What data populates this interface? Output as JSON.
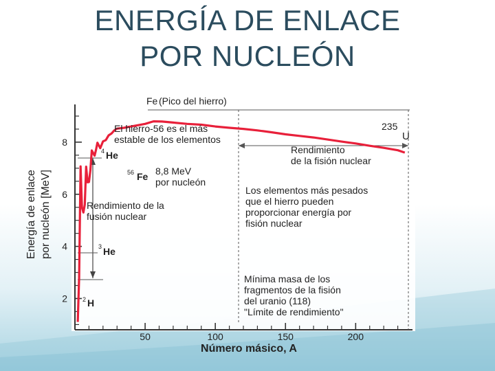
{
  "slide": {
    "title_line1": "ENERGÍA DE ENLACE",
    "title_line2": "POR NUCLEÓN"
  },
  "colors": {
    "curve": "#e8203a",
    "axis": "#333333",
    "title": "#2b4c5e"
  },
  "chart_data": {
    "type": "line",
    "title": "",
    "xlabel": "Número másico, A",
    "ylabel_line1": "Energía de enlace",
    "ylabel_line2": "por nucleón [MeV]",
    "xlim": [
      0,
      240
    ],
    "ylim": [
      0.8,
      9.5
    ],
    "xticks": [
      50,
      100,
      150,
      200
    ],
    "yticks": [
      2,
      4,
      6,
      8
    ],
    "grid": false,
    "series": [
      {
        "values": [
          [
            2,
            1.1
          ],
          [
            3,
            2.8
          ],
          [
            4,
            7.07
          ],
          [
            5,
            5.5
          ],
          [
            6,
            5.3
          ],
          [
            7,
            5.6
          ],
          [
            8,
            7.06
          ],
          [
            9,
            6.46
          ],
          [
            10,
            6.47
          ],
          [
            11,
            6.93
          ],
          [
            12,
            7.68
          ],
          [
            14,
            7.48
          ],
          [
            15,
            7.7
          ],
          [
            16,
            7.98
          ],
          [
            18,
            7.77
          ],
          [
            20,
            8.03
          ],
          [
            22,
            8.08
          ],
          [
            24,
            8.26
          ],
          [
            26,
            8.33
          ],
          [
            28,
            8.45
          ],
          [
            30,
            8.52
          ],
          [
            35,
            8.55
          ],
          [
            40,
            8.6
          ],
          [
            45,
            8.65
          ],
          [
            50,
            8.7
          ],
          [
            56,
            8.8
          ],
          [
            62,
            8.79
          ],
          [
            70,
            8.75
          ],
          [
            80,
            8.7
          ],
          [
            90,
            8.67
          ],
          [
            100,
            8.6
          ],
          [
            110,
            8.55
          ],
          [
            120,
            8.51
          ],
          [
            130,
            8.45
          ],
          [
            140,
            8.38
          ],
          [
            150,
            8.3
          ],
          [
            160,
            8.24
          ],
          [
            170,
            8.18
          ],
          [
            180,
            8.1
          ],
          [
            190,
            8.02
          ],
          [
            200,
            7.95
          ],
          [
            210,
            7.86
          ],
          [
            220,
            7.78
          ],
          [
            230,
            7.69
          ],
          [
            235,
            7.6
          ]
        ]
      }
    ],
    "labels": {
      "fe_peak_element": "Fe",
      "fe_peak": "(Pico del hierro)",
      "u235_mass": "235",
      "u235_symbol": "U",
      "he4_mass": "4",
      "he4_symbol": "He",
      "fe56_mass": "56",
      "fe56_symbol": "Fe",
      "he3_mass": "3",
      "he3_symbol": "He",
      "h2_mass": "2",
      "h2_symbol": "H",
      "fe_stable_line1": "El hierro-56 es el más",
      "fe_stable_line2": "estable de los elementos",
      "fe_energy_line1": "8,8 MeV",
      "fe_energy_line2": "por nucleón",
      "fission_yield_line1": "Rendimiento",
      "fission_yield_line2": "de la fisión nuclear",
      "fusion_yield_line1": "Rendimiento de la",
      "fusion_yield_line2": "fusión nuclear",
      "heavy_line1": "Los elementos más pesados",
      "heavy_line2": "que el hierro pueden",
      "heavy_line3": "proporcionar energía por",
      "heavy_line4": "fisión nuclear",
      "min_mass_line1": "Mínima masa de los",
      "min_mass_line2": "fragmentos de la fisión",
      "min_mass_line3": "del uranio (118)",
      "min_mass_line4": "\"Límite de rendimiento\""
    }
  }
}
